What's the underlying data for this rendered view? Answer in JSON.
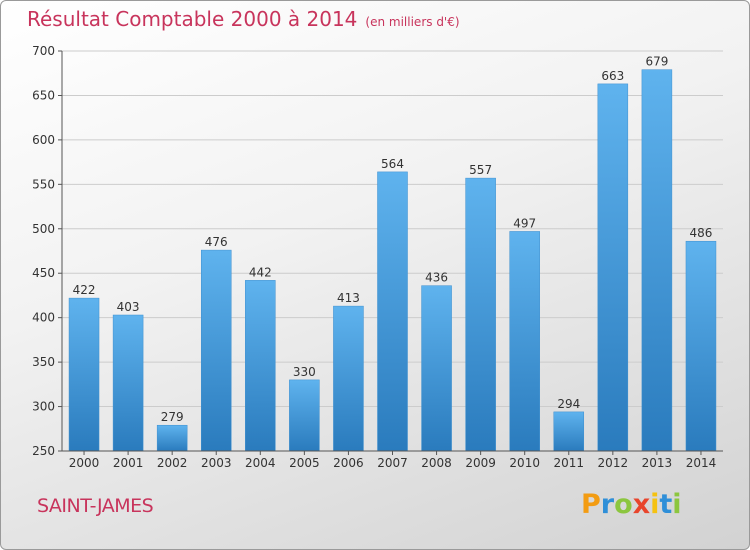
{
  "title": "Résultat Comptable 2000 à 2014",
  "subtitle": "(en milliers d'€)",
  "commune": "SAINT-JAMES",
  "logo": {
    "letters": [
      "P",
      "r",
      "o",
      "x",
      "i",
      "t",
      "i"
    ],
    "colors": [
      "#f39c12",
      "#2f8fd8",
      "#8cc63f",
      "#e8452c",
      "#f5c211",
      "#2f8fd8",
      "#8cc63f"
    ]
  },
  "colors": {
    "bar_light": "#5fb3ee",
    "bar_dark": "#2a7bbd",
    "title": "#c8345c"
  },
  "chart_data": {
    "type": "bar",
    "categories": [
      "2000",
      "2001",
      "2002",
      "2003",
      "2004",
      "2005",
      "2006",
      "2007",
      "2008",
      "2009",
      "2010",
      "2011",
      "2012",
      "2013",
      "2014"
    ],
    "values": [
      422,
      403,
      279,
      476,
      442,
      330,
      413,
      564,
      436,
      557,
      497,
      294,
      663,
      679,
      486
    ],
    "ylim": [
      250,
      700
    ],
    "yticks": [
      250,
      300,
      350,
      400,
      450,
      500,
      550,
      600,
      650,
      700
    ],
    "grid": true
  }
}
